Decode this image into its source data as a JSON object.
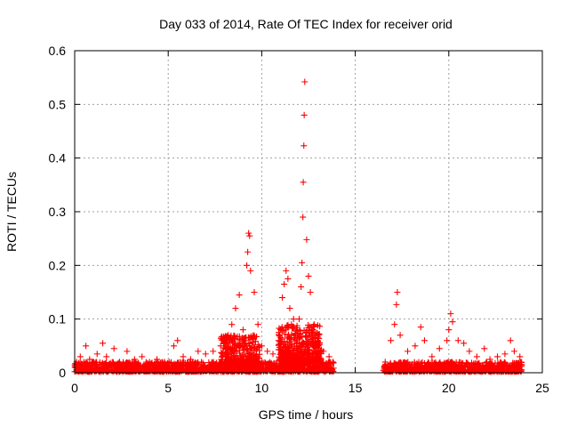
{
  "chart_data": {
    "type": "scatter",
    "title": "Day 033 of 2014, Rate Of TEC Index for receiver orid",
    "xlabel": "GPS time / hours",
    "ylabel": "ROTI / TECUs",
    "xlim": [
      0,
      25
    ],
    "ylim": [
      0,
      0.6
    ],
    "x_ticks": [
      0,
      5,
      10,
      15,
      20,
      25
    ],
    "y_ticks": [
      0,
      0.1,
      0.2,
      0.3,
      0.4,
      0.5,
      0.6
    ],
    "grid": true,
    "marker": "+",
    "color": "#ff0000",
    "series": [
      {
        "name": "ROTI",
        "points": [
          [
            0.1,
            0.02
          ],
          [
            0.3,
            0.03
          ],
          [
            0.5,
            0.015
          ],
          [
            0.6,
            0.05
          ],
          [
            0.8,
            0.025
          ],
          [
            1.0,
            0.02
          ],
          [
            1.2,
            0.035
          ],
          [
            1.5,
            0.055
          ],
          [
            1.7,
            0.03
          ],
          [
            2.1,
            0.045
          ],
          [
            2.4,
            0.02
          ],
          [
            2.8,
            0.04
          ],
          [
            3.2,
            0.025
          ],
          [
            3.6,
            0.03
          ],
          [
            4.0,
            0.02
          ],
          [
            4.4,
            0.025
          ],
          [
            4.8,
            0.02
          ],
          [
            5.3,
            0.05
          ],
          [
            5.5,
            0.06
          ],
          [
            5.8,
            0.03
          ],
          [
            6.2,
            0.025
          ],
          [
            6.6,
            0.04
          ],
          [
            7.0,
            0.035
          ],
          [
            7.4,
            0.04
          ],
          [
            7.8,
            0.05
          ],
          [
            8.2,
            0.07
          ],
          [
            8.4,
            0.09
          ],
          [
            8.6,
            0.12
          ],
          [
            8.8,
            0.145
          ],
          [
            9.0,
            0.08
          ],
          [
            9.2,
            0.2
          ],
          [
            9.25,
            0.225
          ],
          [
            9.3,
            0.26
          ],
          [
            9.35,
            0.255
          ],
          [
            9.4,
            0.19
          ],
          [
            9.6,
            0.15
          ],
          [
            9.8,
            0.09
          ],
          [
            10.0,
            0.05
          ],
          [
            10.3,
            0.04
          ],
          [
            10.6,
            0.035
          ],
          [
            10.9,
            0.06
          ],
          [
            11.0,
            0.08
          ],
          [
            11.1,
            0.14
          ],
          [
            11.2,
            0.165
          ],
          [
            11.3,
            0.19
          ],
          [
            11.4,
            0.175
          ],
          [
            11.5,
            0.12
          ],
          [
            11.7,
            0.1
          ],
          [
            11.9,
            0.08
          ],
          [
            12.0,
            0.1
          ],
          [
            12.1,
            0.16
          ],
          [
            12.15,
            0.205
          ],
          [
            12.2,
            0.29
          ],
          [
            12.22,
            0.355
          ],
          [
            12.25,
            0.423
          ],
          [
            12.27,
            0.48
          ],
          [
            12.3,
            0.542
          ],
          [
            12.4,
            0.248
          ],
          [
            12.5,
            0.18
          ],
          [
            12.6,
            0.15
          ],
          [
            12.8,
            0.09
          ],
          [
            13.0,
            0.05
          ],
          [
            13.3,
            0.04
          ],
          [
            13.6,
            0.03
          ],
          [
            13.8,
            0.02
          ],
          [
            16.6,
            0.02
          ],
          [
            16.9,
            0.06
          ],
          [
            17.1,
            0.09
          ],
          [
            17.2,
            0.127
          ],
          [
            17.25,
            0.15
          ],
          [
            17.4,
            0.07
          ],
          [
            17.8,
            0.04
          ],
          [
            18.2,
            0.05
          ],
          [
            18.5,
            0.085
          ],
          [
            18.7,
            0.06
          ],
          [
            19.1,
            0.03
          ],
          [
            19.5,
            0.045
          ],
          [
            19.9,
            0.06
          ],
          [
            20.0,
            0.08
          ],
          [
            20.1,
            0.11
          ],
          [
            20.2,
            0.095
          ],
          [
            20.5,
            0.06
          ],
          [
            20.8,
            0.055
          ],
          [
            21.1,
            0.04
          ],
          [
            21.5,
            0.03
          ],
          [
            21.9,
            0.045
          ],
          [
            22.2,
            0.025
          ],
          [
            22.6,
            0.03
          ],
          [
            23.0,
            0.035
          ],
          [
            23.3,
            0.06
          ],
          [
            23.5,
            0.04
          ],
          [
            23.8,
            0.03
          ]
        ]
      }
    ],
    "bands": [
      {
        "x": [
          0,
          13.85
        ],
        "ymin": 0.002,
        "ymax": 0.02,
        "density": 1400
      },
      {
        "x": [
          16.5,
          23.9
        ],
        "ymin": 0.002,
        "ymax": 0.02,
        "density": 750
      },
      {
        "x": [
          7.8,
          9.9
        ],
        "ymin": 0.015,
        "ymax": 0.07,
        "density": 300
      },
      {
        "x": [
          10.9,
          13.2
        ],
        "ymin": 0.02,
        "ymax": 0.09,
        "density": 450
      }
    ]
  }
}
